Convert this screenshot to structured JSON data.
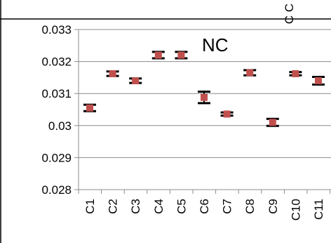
{
  "top_fragment": "C C",
  "chart_data": {
    "type": "scatter",
    "annotation": "NC",
    "categories": [
      "C1",
      "C2",
      "C3",
      "C4",
      "C5",
      "C6",
      "C7",
      "C8",
      "C9",
      "C10",
      "C11"
    ],
    "series": [
      {
        "values": [
          0.03055,
          0.03162,
          0.0314,
          0.0322,
          0.0322,
          0.03088,
          0.03036,
          0.03165,
          0.0301,
          0.03162,
          0.0314
        ],
        "err_upper": [
          0.0001,
          7e-05,
          7e-05,
          0.0001,
          0.0001,
          0.00018,
          5e-05,
          8e-05,
          0.00011,
          5e-05,
          0.00012
        ],
        "err_lower": [
          0.0001,
          7e-05,
          7e-05,
          0.0001,
          0.0001,
          0.00018,
          5e-05,
          8e-05,
          0.00011,
          5e-05,
          0.00012
        ]
      }
    ],
    "yticks": [
      "0.033",
      "0.032",
      "0.031",
      "0.03",
      "0.029",
      "0.028"
    ],
    "ylim": [
      0.028,
      0.033
    ],
    "grid": true,
    "marker_color": "#C0504D",
    "errorbar_color": "#000000"
  }
}
